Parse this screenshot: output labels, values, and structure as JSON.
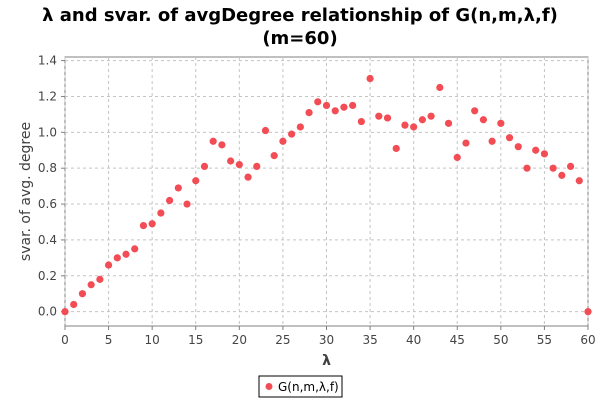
{
  "title_line1": "λ and svar. of avgDegree relationship of G(n,m,λ,f)",
  "title_line2": "(m=60)",
  "chart_data": {
    "type": "scatter",
    "title": "λ and svar. of avgDegree relationship of G(n,m,λ,f) (m=60)",
    "xlabel": "λ",
    "ylabel": "svar. of avg. degree",
    "xlim": [
      0,
      60
    ],
    "ylim": [
      -0.08,
      1.42
    ],
    "xticks": [
      0,
      5,
      10,
      15,
      20,
      25,
      30,
      35,
      40,
      45,
      50,
      55,
      60
    ],
    "yticks": [
      0.0,
      0.2,
      0.4,
      0.6,
      0.8,
      1.0,
      1.2,
      1.4
    ],
    "ytick_labels": [
      "0.0",
      "0.2",
      "0.4",
      "0.6",
      "0.8",
      "1.0",
      "1.2",
      "1.4"
    ],
    "grid": true,
    "legend_position": "bottom-center",
    "series": [
      {
        "name": "G(n,m,λ,f)",
        "color": "#f24d55",
        "x": [
          0,
          1,
          2,
          3,
          4,
          5,
          6,
          7,
          8,
          9,
          10,
          11,
          12,
          13,
          14,
          15,
          16,
          17,
          18,
          19,
          20,
          21,
          22,
          23,
          24,
          25,
          26,
          27,
          28,
          29,
          30,
          31,
          32,
          33,
          34,
          35,
          36,
          37,
          38,
          39,
          40,
          41,
          42,
          43,
          44,
          45,
          46,
          47,
          48,
          49,
          50,
          51,
          52,
          53,
          54,
          55,
          56,
          57,
          58,
          59,
          60
        ],
        "y": [
          0.0,
          0.04,
          0.1,
          0.15,
          0.18,
          0.26,
          0.3,
          0.32,
          0.35,
          0.48,
          0.49,
          0.55,
          0.62,
          0.69,
          0.6,
          0.73,
          0.81,
          0.95,
          0.93,
          0.84,
          0.82,
          0.75,
          0.81,
          1.01,
          0.87,
          0.95,
          0.99,
          1.03,
          1.11,
          1.17,
          1.15,
          1.12,
          1.14,
          1.15,
          1.06,
          1.3,
          1.09,
          1.08,
          0.91,
          1.04,
          1.03,
          1.07,
          1.09,
          1.25,
          1.05,
          0.86,
          0.94,
          1.12,
          1.07,
          0.95,
          1.05,
          0.97,
          0.92,
          0.8,
          0.9,
          0.88,
          0.8,
          0.76,
          0.81,
          0.73,
          0.0
        ]
      }
    ]
  }
}
